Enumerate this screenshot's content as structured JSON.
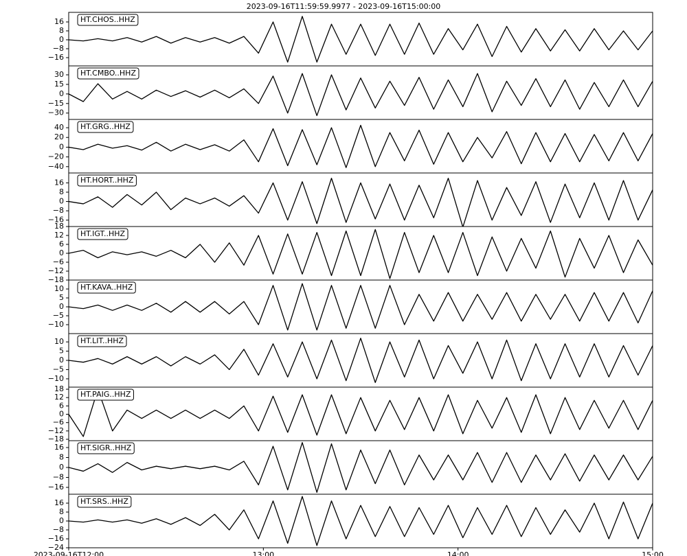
{
  "title": "2023-09-16T11:59:59.9977  -  2023-09-16T15:00:00",
  "chart_data": [
    {
      "type": "line",
      "label": "HT.CHOS..HHZ",
      "color": "#000000",
      "ylim": [
        -23.4,
        24.6
      ],
      "yticks": [
        {
          "value": -16,
          "label": "−16"
        },
        {
          "value": -8,
          "label": "−8"
        },
        0,
        8,
        16
      ],
      "x": [
        12,
        12.075,
        12.15,
        12.225,
        12.3,
        12.375,
        12.45,
        12.525,
        12.6,
        12.675,
        12.75,
        12.825,
        12.9,
        12.975,
        13.05,
        13.125,
        13.2,
        13.275,
        13.35,
        13.425,
        13.5,
        13.575,
        13.65,
        13.725,
        13.8,
        13.875,
        13.95,
        14.025,
        14.1,
        14.175,
        14.25,
        14.325,
        14.4,
        14.475,
        14.55,
        14.625,
        14.7,
        14.775,
        14.85,
        14.925,
        15
      ],
      "values": [
        0,
        -1,
        1,
        -1,
        2,
        -2,
        3,
        -3,
        2,
        -2,
        2,
        -3,
        3,
        -12,
        16,
        -20,
        21,
        -20,
        14,
        -13,
        14,
        -14,
        14,
        -13,
        15,
        -13,
        10,
        -9,
        14,
        -15,
        12,
        -11,
        10,
        -10,
        9,
        -10,
        10,
        -9,
        8,
        -9,
        8
      ]
    },
    {
      "type": "line",
      "label": "HT.CMBO..HHZ",
      "color": "#000000",
      "ylim": [
        -40,
        44
      ],
      "yticks": [
        {
          "value": -30,
          "label": "−30"
        },
        {
          "value": -15,
          "label": "−15"
        },
        0,
        15,
        30
      ],
      "x": [
        12,
        12.075,
        12.15,
        12.225,
        12.3,
        12.375,
        12.45,
        12.525,
        12.6,
        12.675,
        12.75,
        12.825,
        12.9,
        12.975,
        13.05,
        13.125,
        13.2,
        13.275,
        13.35,
        13.425,
        13.5,
        13.575,
        13.65,
        13.725,
        13.8,
        13.875,
        13.95,
        14.025,
        14.1,
        14.175,
        14.25,
        14.325,
        14.4,
        14.475,
        14.55,
        14.625,
        14.7,
        14.775,
        14.85,
        14.925,
        15
      ],
      "values": [
        0,
        -12,
        16,
        -8,
        4,
        -8,
        6,
        -4,
        5,
        -5,
        6,
        -6,
        8,
        -15,
        28,
        -30,
        32,
        -34,
        30,
        -25,
        25,
        -22,
        20,
        -18,
        26,
        -24,
        22,
        -20,
        32,
        -28,
        20,
        -18,
        24,
        -20,
        22,
        -24,
        18,
        -20,
        22,
        -20,
        20
      ]
    },
    {
      "type": "line",
      "label": "HT.GRG..HHZ",
      "color": "#000000",
      "ylim": [
        -53,
        57
      ],
      "yticks": [
        {
          "value": -40,
          "label": "−40"
        },
        {
          "value": -20,
          "label": "−20"
        },
        0,
        20,
        40
      ],
      "x": [
        12,
        12.075,
        12.15,
        12.225,
        12.3,
        12.375,
        12.45,
        12.525,
        12.6,
        12.675,
        12.75,
        12.825,
        12.9,
        12.975,
        13.05,
        13.125,
        13.2,
        13.275,
        13.35,
        13.425,
        13.5,
        13.575,
        13.65,
        13.725,
        13.8,
        13.875,
        13.95,
        14.025,
        14.1,
        14.175,
        14.25,
        14.325,
        14.4,
        14.475,
        14.55,
        14.625,
        14.7,
        14.775,
        14.85,
        14.925,
        15
      ],
      "values": [
        0,
        -5,
        6,
        -2,
        3,
        -6,
        10,
        -8,
        6,
        -5,
        5,
        -8,
        15,
        -30,
        38,
        -38,
        36,
        -36,
        40,
        -42,
        45,
        -40,
        30,
        -28,
        35,
        -35,
        30,
        -30,
        20,
        -22,
        32,
        -34,
        30,
        -30,
        28,
        -30,
        26,
        -28,
        30,
        -28,
        28
      ]
    },
    {
      "type": "line",
      "label": "HT.HORT..HHZ",
      "color": "#000000",
      "ylim": [
        -21.5,
        24.5
      ],
      "yticks": [
        {
          "value": -16,
          "label": "−16"
        },
        {
          "value": -8,
          "label": "−8"
        },
        0,
        8,
        16
      ],
      "x": [
        12,
        12.075,
        12.15,
        12.225,
        12.3,
        12.375,
        12.45,
        12.525,
        12.6,
        12.675,
        12.75,
        12.825,
        12.9,
        12.975,
        13.05,
        13.125,
        13.2,
        13.275,
        13.35,
        13.425,
        13.5,
        13.575,
        13.65,
        13.725,
        13.8,
        13.875,
        13.95,
        14.025,
        14.1,
        14.175,
        14.25,
        14.325,
        14.4,
        14.475,
        14.55,
        14.625,
        14.7,
        14.775,
        14.85,
        14.925,
        15
      ],
      "values": [
        0,
        -2,
        4,
        -5,
        6,
        -3,
        8,
        -7,
        3,
        -2,
        3,
        -4,
        5,
        -10,
        16,
        -16,
        17,
        -19,
        20,
        -18,
        16,
        -15,
        15,
        -16,
        14,
        -14,
        20,
        -22,
        18,
        -16,
        12,
        -12,
        17,
        -18,
        15,
        -14,
        16,
        -16,
        18,
        -16,
        10
      ]
    },
    {
      "type": "line",
      "label": "HT.IGT..HHZ",
      "color": "#000000",
      "ylim": [
        -18,
        18
      ],
      "yticks": [
        {
          "value": -18,
          "label": "−18"
        },
        {
          "value": -12,
          "label": "−12"
        },
        {
          "value": -6,
          "label": "−6"
        },
        0,
        6,
        12,
        18
      ],
      "x": [
        12,
        12.075,
        12.15,
        12.225,
        12.3,
        12.375,
        12.45,
        12.525,
        12.6,
        12.675,
        12.75,
        12.825,
        12.9,
        12.975,
        13.05,
        13.125,
        13.2,
        13.275,
        13.35,
        13.425,
        13.5,
        13.575,
        13.65,
        13.725,
        13.8,
        13.875,
        13.95,
        14.025,
        14.1,
        14.175,
        14.25,
        14.325,
        14.4,
        14.475,
        14.55,
        14.625,
        14.7,
        14.775,
        14.85,
        14.925,
        15
      ],
      "values": [
        0,
        2,
        -3,
        1,
        -1,
        1,
        -2,
        2,
        -3,
        6,
        -6,
        7,
        -8,
        12,
        -14,
        13,
        -14,
        14,
        -15,
        15,
        -15,
        16,
        -17,
        14,
        -13,
        12,
        -13,
        14,
        -15,
        11,
        -12,
        10,
        -10,
        15,
        -16,
        10,
        -10,
        12,
        -13,
        9,
        -8
      ]
    },
    {
      "type": "line",
      "label": "HT.KAVA..HHZ",
      "color": "#000000",
      "ylim": [
        -15,
        15
      ],
      "yticks": [
        {
          "value": -10,
          "label": "−10"
        },
        {
          "value": -5,
          "label": "−5"
        },
        0,
        5,
        10
      ],
      "x": [
        12,
        12.075,
        12.15,
        12.225,
        12.3,
        12.375,
        12.45,
        12.525,
        12.6,
        12.675,
        12.75,
        12.825,
        12.9,
        12.975,
        13.05,
        13.125,
        13.2,
        13.275,
        13.35,
        13.425,
        13.5,
        13.575,
        13.65,
        13.725,
        13.8,
        13.875,
        13.95,
        14.025,
        14.1,
        14.175,
        14.25,
        14.325,
        14.4,
        14.475,
        14.55,
        14.625,
        14.7,
        14.775,
        14.85,
        14.925,
        15
      ],
      "values": [
        0,
        -1,
        1,
        -2,
        1,
        -2,
        2,
        -3,
        3,
        -3,
        3,
        -4,
        3,
        -10,
        12,
        -13,
        13,
        -13,
        12,
        -12,
        12,
        -12,
        12,
        -10,
        7,
        -8,
        8,
        -8,
        7,
        -7,
        8,
        -8,
        7,
        -7,
        7,
        -8,
        8,
        -8,
        8,
        -9,
        9
      ]
    },
    {
      "type": "line",
      "label": "HT.LIT..HHZ",
      "color": "#000000",
      "ylim": [
        -14.5,
        14.5
      ],
      "yticks": [
        {
          "value": -10,
          "label": "−10"
        },
        {
          "value": -5,
          "label": "−5"
        },
        0,
        5,
        10
      ],
      "x": [
        12,
        12.075,
        12.15,
        12.225,
        12.3,
        12.375,
        12.45,
        12.525,
        12.6,
        12.675,
        12.75,
        12.825,
        12.9,
        12.975,
        13.05,
        13.125,
        13.2,
        13.275,
        13.35,
        13.425,
        13.5,
        13.575,
        13.65,
        13.725,
        13.8,
        13.875,
        13.95,
        14.025,
        14.1,
        14.175,
        14.25,
        14.325,
        14.4,
        14.475,
        14.55,
        14.625,
        14.7,
        14.775,
        14.85,
        14.925,
        15
      ],
      "values": [
        0,
        -1,
        1,
        -2,
        2,
        -2,
        2,
        -3,
        2,
        -2,
        3,
        -5,
        6,
        -8,
        9,
        -9,
        10,
        -10,
        11,
        -11,
        12,
        -12,
        10,
        -9,
        11,
        -10,
        8,
        -7,
        10,
        -10,
        11,
        -11,
        9,
        -10,
        9,
        -9,
        9,
        -9,
        8,
        -8,
        8
      ]
    },
    {
      "type": "line",
      "label": "HT.PAIG..HHZ",
      "color": "#000000",
      "ylim": [
        -19,
        19.5
      ],
      "yticks": [
        {
          "value": -18,
          "label": "−18"
        },
        {
          "value": -12,
          "label": "−12"
        },
        {
          "value": -6,
          "label": "−6"
        },
        0,
        6,
        12,
        18
      ],
      "x": [
        12,
        12.075,
        12.15,
        12.225,
        12.3,
        12.375,
        12.45,
        12.525,
        12.6,
        12.675,
        12.75,
        12.825,
        12.9,
        12.975,
        13.05,
        13.125,
        13.2,
        13.275,
        13.35,
        13.425,
        13.5,
        13.575,
        13.65,
        13.725,
        13.8,
        13.875,
        13.95,
        14.025,
        14.1,
        14.175,
        14.25,
        14.325,
        14.4,
        14.475,
        14.55,
        14.625,
        14.7,
        14.775,
        14.85,
        14.925,
        15
      ],
      "values": [
        0,
        -16,
        18,
        -12,
        3,
        -3,
        3,
        -3,
        3,
        -3,
        3,
        -3,
        6,
        -12,
        13,
        -13,
        14,
        -15,
        14,
        -14,
        12,
        -12,
        10,
        -11,
        12,
        -12,
        14,
        -14,
        10,
        -10,
        12,
        -13,
        14,
        -14,
        12,
        -11,
        10,
        -10,
        10,
        -11,
        10
      ]
    },
    {
      "type": "line",
      "label": "HT.SIGR..HHZ",
      "color": "#000000",
      "ylim": [
        -21.5,
        21.5
      ],
      "yticks": [
        {
          "value": -16,
          "label": "−16"
        },
        {
          "value": -8,
          "label": "−8"
        },
        0,
        8,
        16
      ],
      "x": [
        12,
        12.075,
        12.15,
        12.225,
        12.3,
        12.375,
        12.45,
        12.525,
        12.6,
        12.675,
        12.75,
        12.825,
        12.9,
        12.975,
        13.05,
        13.125,
        13.2,
        13.275,
        13.35,
        13.425,
        13.5,
        13.575,
        13.65,
        13.725,
        13.8,
        13.875,
        13.95,
        14.025,
        14.1,
        14.175,
        14.25,
        14.325,
        14.4,
        14.475,
        14.55,
        14.625,
        14.7,
        14.775,
        14.85,
        14.925,
        15
      ],
      "values": [
        0,
        -3,
        3,
        -4,
        4,
        -2,
        1,
        -1,
        1,
        -1,
        1,
        -2,
        5,
        -14,
        17,
        -18,
        20,
        -20,
        19,
        -18,
        14,
        -13,
        14,
        -14,
        10,
        -10,
        10,
        -10,
        12,
        -12,
        12,
        -12,
        10,
        -10,
        11,
        -11,
        10,
        -10,
        10,
        -10,
        9
      ]
    },
    {
      "type": "line",
      "label": "HT.SRS..HHZ",
      "color": "#000000",
      "ylim": [
        -24,
        24
      ],
      "yticks": [
        {
          "value": -24,
          "label": "−24"
        },
        {
          "value": -16,
          "label": "−16"
        },
        {
          "value": -8,
          "label": "−8"
        },
        0,
        8,
        16
      ],
      "xlim": [
        12,
        15
      ],
      "xticks": [
        {
          "value": 12,
          "label": "2023-09-16T12:00"
        },
        {
          "value": 13,
          "label": "13:00"
        },
        {
          "value": 14,
          "label": "14:00"
        },
        {
          "value": 15,
          "label": "15:00"
        }
      ],
      "x": [
        12,
        12.075,
        12.15,
        12.225,
        12.3,
        12.375,
        12.45,
        12.525,
        12.6,
        12.675,
        12.75,
        12.825,
        12.9,
        12.975,
        13.05,
        13.125,
        13.2,
        13.275,
        13.35,
        13.425,
        13.5,
        13.575,
        13.65,
        13.725,
        13.8,
        13.875,
        13.95,
        14.025,
        14.1,
        14.175,
        14.25,
        14.325,
        14.4,
        14.475,
        14.55,
        14.625,
        14.7,
        14.775,
        14.85,
        14.925,
        15
      ],
      "values": [
        0,
        -1,
        1,
        -1,
        1,
        -2,
        2,
        -3,
        3,
        -4,
        6,
        -8,
        10,
        -16,
        18,
        -20,
        22,
        -22,
        18,
        -16,
        14,
        -14,
        13,
        -14,
        12,
        -12,
        14,
        -15,
        12,
        -12,
        14,
        -14,
        12,
        -12,
        10,
        -10,
        16,
        -16,
        17,
        -16,
        16
      ]
    }
  ]
}
